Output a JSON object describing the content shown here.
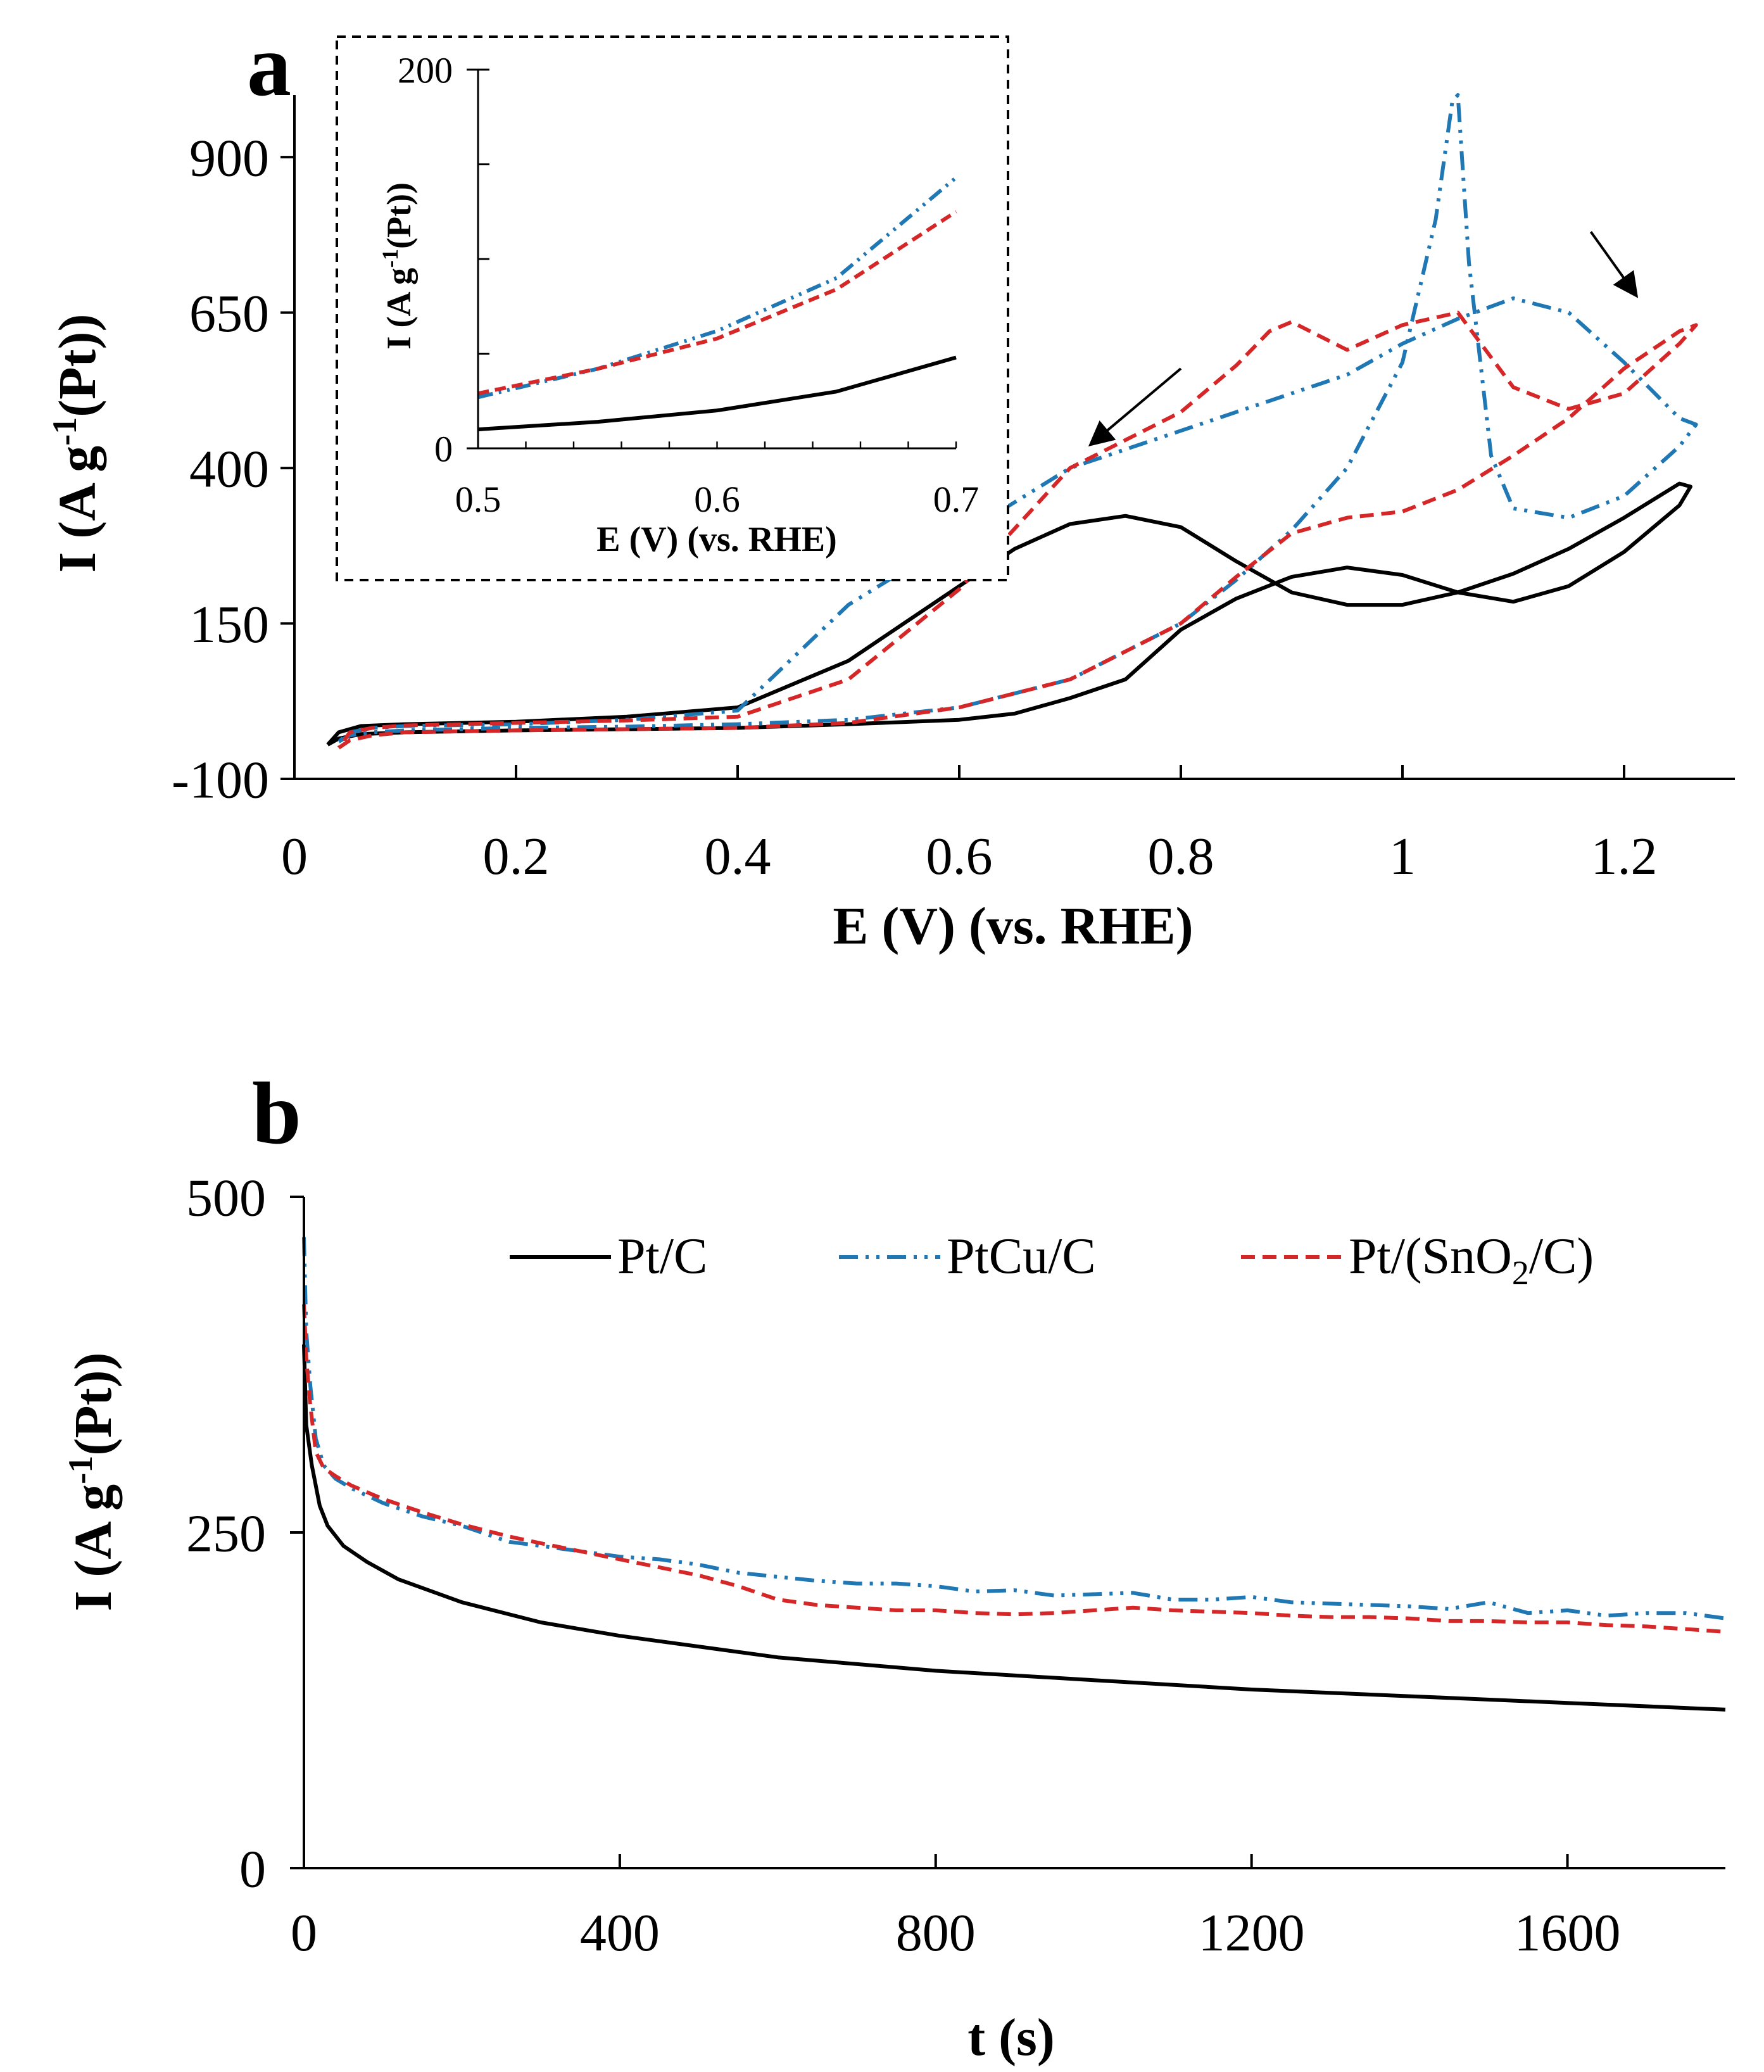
{
  "colors": {
    "ptc": "#000000",
    "ptcu": "#1f77b4",
    "ptsn": "#d62728",
    "ink": "#000000"
  },
  "panel_labels": {
    "a": "a",
    "b": "b"
  },
  "legend": [
    {
      "series": "Pt/C",
      "pre": "Pt/C",
      "sub": "",
      "post": ""
    },
    {
      "series": "PtCu/C",
      "pre": "PtCu/C",
      "sub": "",
      "post": ""
    },
    {
      "series": "Pt/(SnO2/C)",
      "pre": "Pt/(SnO",
      "sub": "2",
      "post": "/C)"
    }
  ],
  "chart_data": [
    {
      "id": "panel-a",
      "type": "line",
      "title": "",
      "xlabel": "E (V) (vs. RHE)",
      "ylabel_parts": {
        "pre": "I (A g",
        "sup": "-1",
        "post": "(Pt))"
      },
      "xlim": [
        0,
        1.3
      ],
      "ylim": [
        -100,
        1000
      ],
      "xticks": [
        "0",
        "0.2",
        "0.4",
        "0.6",
        "0.8",
        "1",
        "1.2"
      ],
      "xtick_values": [
        0,
        0.2,
        0.4,
        0.6,
        0.8,
        1.0,
        1.2
      ],
      "yticks": [
        "-100",
        "150",
        "400",
        "650",
        "900"
      ],
      "ytick_values": [
        -100,
        150,
        400,
        650,
        900
      ],
      "annotations": [
        {
          "type": "arrow",
          "from": [
            0.8,
            560
          ],
          "to": [
            0.72,
            440
          ]
        },
        {
          "type": "arrow",
          "from": [
            1.17,
            780
          ],
          "to": [
            1.21,
            680
          ]
        }
      ],
      "series": [
        {
          "name": "Pt/C",
          "style": "solid",
          "x": [
            0.03,
            0.04,
            0.06,
            0.1,
            0.2,
            0.3,
            0.4,
            0.5,
            0.6,
            0.65,
            0.7,
            0.75,
            0.8,
            0.85,
            0.9,
            0.95,
            1.0,
            1.05,
            1.1,
            1.15,
            1.2,
            1.25,
            1.26,
            1.25,
            1.2,
            1.15,
            1.1,
            1.05,
            1.0,
            0.95,
            0.9,
            0.85,
            0.8,
            0.75,
            0.7,
            0.65,
            0.6,
            0.55,
            0.5,
            0.4,
            0.3,
            0.2,
            0.1,
            0.06,
            0.04,
            0.03
          ],
          "y": [
            -45,
            -35,
            -28,
            -25,
            -22,
            -20,
            -18,
            -12,
            -5,
            5,
            30,
            60,
            140,
            190,
            225,
            240,
            228,
            200,
            185,
            210,
            265,
            340,
            370,
            375,
            320,
            270,
            230,
            200,
            180,
            180,
            200,
            250,
            305,
            323,
            310,
            270,
            210,
            150,
            90,
            15,
            0,
            -8,
            -12,
            -15,
            -25,
            -45
          ]
        },
        {
          "name": "PtCu/C",
          "style": "dashdotdot",
          "x": [
            0.04,
            0.05,
            0.07,
            0.1,
            0.2,
            0.3,
            0.4,
            0.5,
            0.6,
            0.7,
            0.8,
            0.85,
            0.9,
            0.95,
            1.0,
            1.03,
            1.045,
            1.05,
            1.06,
            1.08,
            1.1,
            1.15,
            1.2,
            1.25,
            1.265,
            1.25,
            1.2,
            1.15,
            1.1,
            1.05,
            1.0,
            0.95,
            0.9,
            0.85,
            0.8,
            0.7,
            0.6,
            0.5,
            0.4,
            0.3,
            0.2,
            0.1,
            0.07,
            0.05,
            0.04
          ],
          "y": [
            -40,
            -30,
            -25,
            -22,
            -18,
            -16,
            -12,
            -5,
            15,
            60,
            150,
            220,
            300,
            400,
            570,
            800,
            990,
            1000,
            730,
            420,
            335,
            320,
            355,
            435,
            470,
            480,
            570,
            650,
            673,
            640,
            600,
            550,
            520,
            490,
            460,
            400,
            290,
            180,
            10,
            -5,
            -12,
            -15,
            -18,
            -25,
            -40
          ]
        },
        {
          "name": "Pt/(SnO2/C)",
          "style": "dashed",
          "x": [
            0.04,
            0.05,
            0.07,
            0.1,
            0.2,
            0.3,
            0.4,
            0.5,
            0.6,
            0.7,
            0.8,
            0.85,
            0.9,
            0.95,
            1.0,
            1.05,
            1.1,
            1.15,
            1.2,
            1.25,
            1.265,
            1.25,
            1.2,
            1.15,
            1.1,
            1.05,
            1.0,
            0.95,
            0.9,
            0.88,
            0.85,
            0.8,
            0.7,
            0.6,
            0.5,
            0.4,
            0.3,
            0.2,
            0.1,
            0.07,
            0.05,
            0.04
          ],
          "y": [
            -50,
            -38,
            -30,
            -25,
            -22,
            -20,
            -18,
            -10,
            15,
            60,
            150,
            225,
            295,
            320,
            330,
            365,
            420,
            480,
            560,
            620,
            630,
            600,
            520,
            495,
            530,
            650,
            630,
            590,
            635,
            620,
            565,
            490,
            400,
            205,
            60,
            0,
            -6,
            -10,
            -14,
            -18,
            -25,
            -50
          ]
        }
      ]
    },
    {
      "id": "panel-a-inset",
      "type": "line",
      "title": "",
      "xlabel": "E (V) (vs. RHE)",
      "ylabel_parts": {
        "pre": "I (A g",
        "sup": "-1",
        "post": "(Pt))"
      },
      "xlim": [
        0.5,
        0.7
      ],
      "ylim": [
        0,
        200
      ],
      "xticks": [
        "0.5",
        "0.6",
        "0.7"
      ],
      "xtick_values": [
        0.5,
        0.6,
        0.7
      ],
      "yticks": [
        "0",
        "200"
      ],
      "ytick_values": [
        0,
        200
      ],
      "series": [
        {
          "name": "Pt/C",
          "style": "solid",
          "x": [
            0.5,
            0.55,
            0.6,
            0.65,
            0.7
          ],
          "y": [
            10,
            14,
            20,
            30,
            48
          ]
        },
        {
          "name": "PtCu/C",
          "style": "dashdotdot",
          "x": [
            0.5,
            0.55,
            0.6,
            0.65,
            0.7
          ],
          "y": [
            27,
            42,
            62,
            90,
            143
          ]
        },
        {
          "name": "Pt/(SnO2/C)",
          "style": "dashed",
          "x": [
            0.5,
            0.55,
            0.6,
            0.65,
            0.7
          ],
          "y": [
            29,
            42,
            58,
            84,
            125
          ]
        }
      ]
    },
    {
      "id": "panel-b",
      "type": "line",
      "title": "",
      "xlabel": "t (s)",
      "ylabel_parts": {
        "pre": "I (A g",
        "sup": "-1",
        "post": "(Pt))"
      },
      "xlim": [
        0,
        1800
      ],
      "ylim": [
        0,
        500
      ],
      "xticks": [
        "0",
        "400",
        "800",
        "1200",
        "1600"
      ],
      "xtick_values": [
        0,
        400,
        800,
        1200,
        1600
      ],
      "yticks": [
        "0",
        "250",
        "500"
      ],
      "ytick_values": [
        0,
        250,
        500
      ],
      "series": [
        {
          "name": "Pt/C",
          "style": "solid",
          "x": [
            0,
            3,
            10,
            20,
            30,
            50,
            80,
            120,
            200,
            300,
            400,
            600,
            800,
            1000,
            1200,
            1400,
            1600,
            1800
          ],
          "y": [
            390,
            330,
            300,
            270,
            255,
            240,
            228,
            215,
            198,
            183,
            173,
            157,
            147,
            140,
            133,
            128,
            123,
            118
          ]
        },
        {
          "name": "PtCu/C",
          "style": "dashdotdot",
          "x": [
            0,
            3,
            8,
            15,
            25,
            40,
            60,
            100,
            150,
            200,
            260,
            300,
            350,
            400,
            450,
            500,
            550,
            600,
            650,
            700,
            750,
            800,
            850,
            900,
            950,
            1000,
            1050,
            1100,
            1150,
            1200,
            1250,
            1300,
            1350,
            1400,
            1450,
            1500,
            1550,
            1600,
            1650,
            1700,
            1750,
            1800
          ],
          "y": [
            470,
            400,
            360,
            320,
            300,
            290,
            283,
            272,
            262,
            255,
            243,
            240,
            236,
            232,
            230,
            226,
            220,
            217,
            214,
            212,
            212,
            210,
            206,
            207,
            203,
            204,
            205,
            200,
            200,
            202,
            198,
            197,
            196,
            195,
            193,
            198,
            190,
            192,
            188,
            190,
            190,
            186
          ]
        },
        {
          "name": "Pt/(SnO2/C)",
          "style": "dashed",
          "x": [
            0,
            3,
            8,
            15,
            25,
            40,
            60,
            100,
            150,
            200,
            260,
            300,
            350,
            400,
            450,
            500,
            550,
            600,
            650,
            700,
            750,
            800,
            850,
            900,
            950,
            1000,
            1050,
            1100,
            1150,
            1200,
            1250,
            1300,
            1350,
            1400,
            1450,
            1500,
            1550,
            1600,
            1650,
            1700,
            1750,
            1800
          ],
          "y": [
            420,
            380,
            345,
            310,
            298,
            292,
            285,
            275,
            265,
            256,
            247,
            242,
            236,
            230,
            224,
            218,
            210,
            200,
            196,
            194,
            192,
            192,
            190,
            189,
            190,
            192,
            194,
            192,
            191,
            190,
            188,
            187,
            187,
            186,
            184,
            184,
            183,
            183,
            181,
            180,
            178,
            176
          ]
        }
      ]
    }
  ]
}
